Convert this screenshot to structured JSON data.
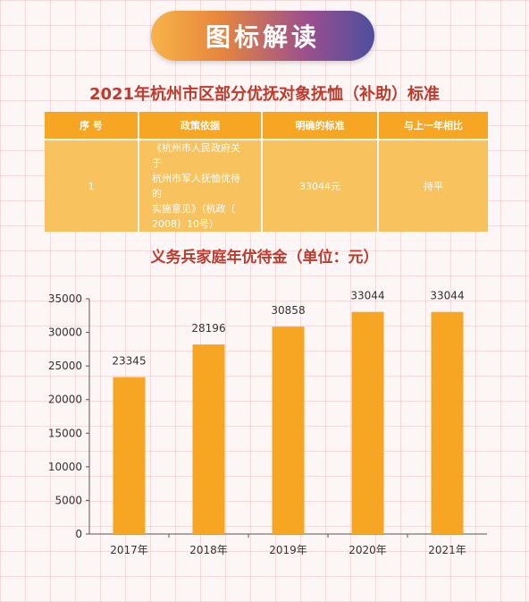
{
  "banner": {
    "title": "图标解读"
  },
  "table": {
    "title": "2021年杭州市区部分优抚对象抚恤（补助）标准",
    "headers": [
      "序 号",
      "政策依据",
      "明确的标准",
      "与上一年相比"
    ],
    "row": {
      "index": "1",
      "basis_lines": [
        "《杭州市人民政府关于",
        "杭州市军人抚恤优待的",
        "实施意见》（杭政〔",
        "2008〕10号）"
      ],
      "standard": "33044元",
      "comparison": "持平"
    }
  },
  "chart_data": {
    "type": "bar",
    "title": "义务兵家庭年优待金（单位：元）",
    "categories": [
      "2017年",
      "2018年",
      "2019年",
      "2020年",
      "2021年"
    ],
    "values": [
      23345,
      28196,
      30858,
      33044,
      33044
    ],
    "data_labels": [
      "23345",
      "28196",
      "30858",
      "33044",
      "33044"
    ],
    "ylim": [
      0,
      35000
    ],
    "yticks": [
      0,
      5000,
      10000,
      15000,
      20000,
      25000,
      30000,
      35000
    ],
    "grid": false,
    "bar_color": "#f6a623",
    "xlabel": "",
    "ylabel": ""
  }
}
